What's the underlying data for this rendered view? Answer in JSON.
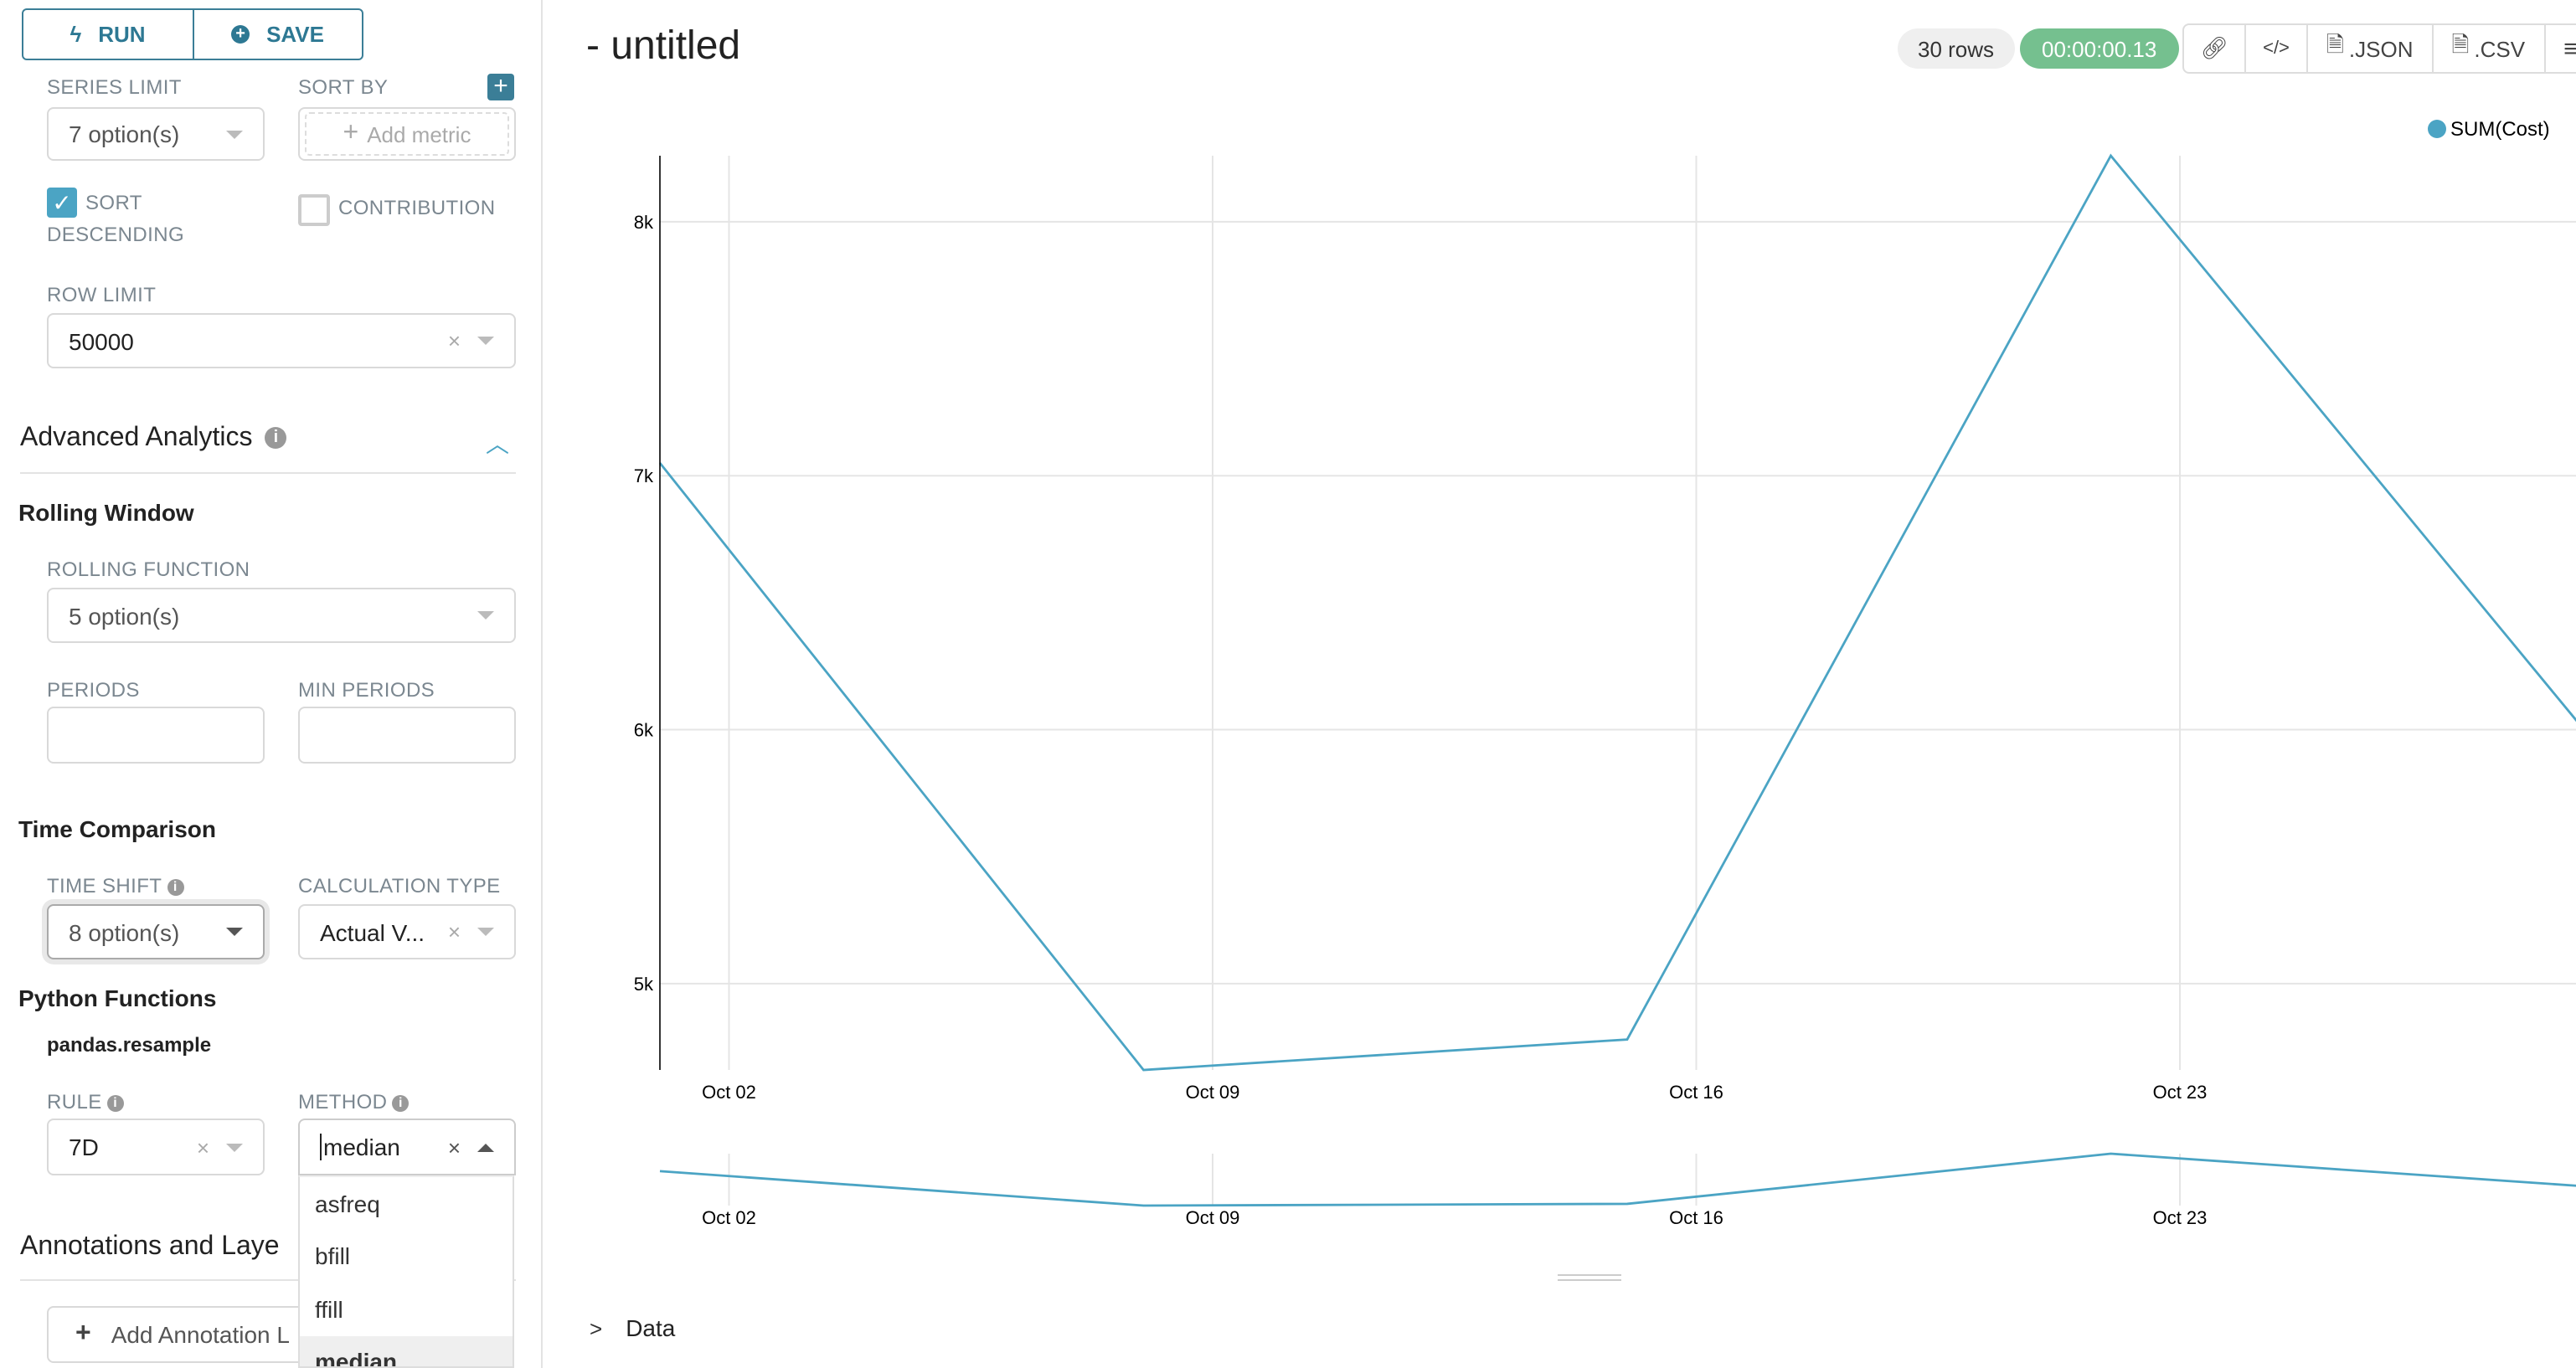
{
  "sidebar": {
    "run_label": "RUN",
    "save_label": "SAVE",
    "series_limit": {
      "label": "SERIES LIMIT",
      "value": "7 option(s)"
    },
    "sort_by": {
      "label": "SORT BY",
      "placeholder": "Add metric"
    },
    "sort_descending": {
      "label_line1": "SORT",
      "label_line2": "DESCENDING",
      "checked": true
    },
    "contribution": {
      "label": "CONTRIBUTION",
      "checked": false
    },
    "row_limit": {
      "label": "ROW LIMIT",
      "value": "50000"
    },
    "advanced_analytics": {
      "title": "Advanced Analytics",
      "expanded": true
    },
    "rolling_window": {
      "title": "Rolling Window",
      "function_label": "ROLLING FUNCTION",
      "function_value": "5 option(s)",
      "periods_label": "PERIODS",
      "periods_value": "",
      "min_periods_label": "MIN PERIODS",
      "min_periods_value": ""
    },
    "time_comparison": {
      "title": "Time Comparison",
      "time_shift_label": "TIME SHIFT",
      "time_shift_value": "8 option(s)",
      "calc_type_label": "CALCULATION TYPE",
      "calc_type_value": "Actual V..."
    },
    "python_functions": {
      "title": "Python Functions",
      "subtitle": "pandas.resample",
      "rule_label": "RULE",
      "rule_value": "7D",
      "method_label": "METHOD",
      "method_value": "median",
      "method_options": [
        "asfreq",
        "bfill",
        "ffill",
        "median"
      ],
      "method_selected": "median"
    },
    "annotations": {
      "title": "Annotations and Laye",
      "add_label": "Add Annotation L"
    }
  },
  "header": {
    "title": "- untitled",
    "rows_badge": "30 rows",
    "timer": "00:00:00.13",
    "timer_color": "#75c08f",
    "json_label": ".JSON",
    "csv_label": ".CSV"
  },
  "chart_data": {
    "type": "line",
    "legend": "top-right",
    "grid": true,
    "series": [
      {
        "name": "SUM(Cost)",
        "color": "#4ba4c4",
        "x": [
          "2019-10-01",
          "2019-10-08",
          "2019-10-15",
          "2019-10-22",
          "2019-10-29"
        ],
        "values": [
          7050,
          4660,
          4780,
          8260,
          5950
        ]
      }
    ],
    "y_ticks": [
      "5k",
      "6k",
      "7k",
      "8k"
    ],
    "y_tick_values": [
      5000,
      6000,
      7000,
      8000
    ],
    "x_ticks": [
      "Oct 02",
      "Oct 09",
      "Oct 16",
      "Oct 23"
    ],
    "x_tick_values": [
      "2019-10-02",
      "2019-10-09",
      "2019-10-16",
      "2019-10-23"
    ],
    "ylim": [
      4660,
      8260
    ],
    "xlim": [
      "2019-10-01",
      "2019-10-29"
    ]
  },
  "data_section": {
    "label": "Data"
  }
}
